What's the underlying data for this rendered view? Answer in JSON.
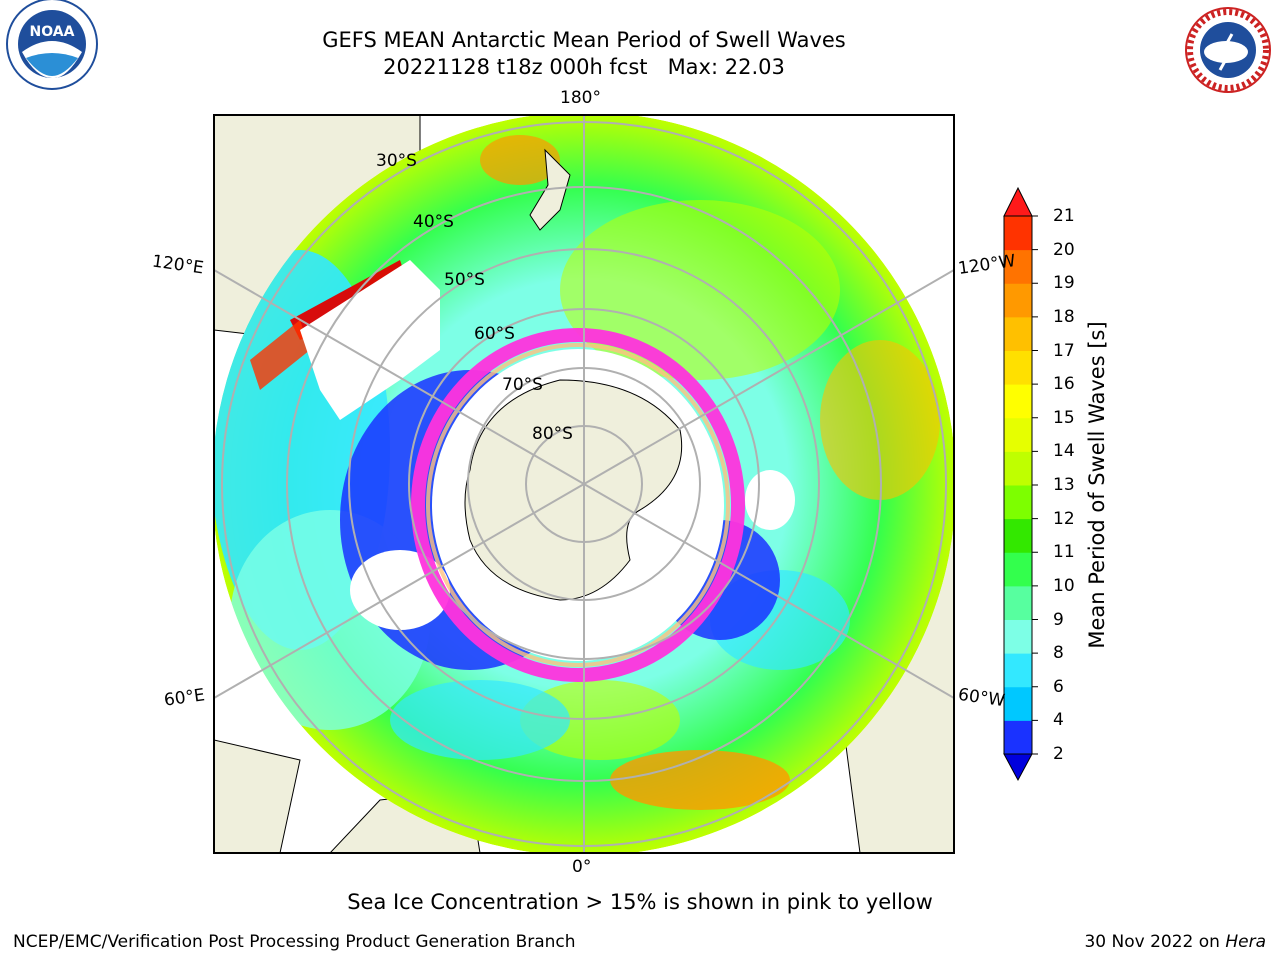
{
  "title": {
    "line1": "GEFS MEAN Antarctic Mean Period of Swell Waves",
    "line2": "20221128 t18z 000h fcst   Max: 22.03"
  },
  "logos": {
    "left": "NOAA",
    "right": "NATIONAL WEATHER SERVICE"
  },
  "map": {
    "longitude_labels": [
      "180°",
      "120°E",
      "120°W",
      "60°E",
      "60°W",
      "0°"
    ],
    "latitude_labels": [
      "30°S",
      "40°S",
      "50°S",
      "60°S",
      "70°S",
      "80°S"
    ]
  },
  "colorbar": {
    "label": "Mean Period of Swell Waves [s]",
    "ticks": [
      "2",
      "4",
      "6",
      "8",
      "9",
      "10",
      "11",
      "12",
      "13",
      "14",
      "15",
      "16",
      "17",
      "18",
      "19",
      "20",
      "21"
    ],
    "colors": [
      "#1a32ff",
      "#00c8ff",
      "#33e8ff",
      "#7dffe6",
      "#57ff9f",
      "#33ff4d",
      "#33e800",
      "#7dff00",
      "#bfff00",
      "#e6ff00",
      "#ffff00",
      "#ffe000",
      "#ffc000",
      "#ff9900",
      "#ff7300",
      "#ff3300",
      "#e00000"
    ],
    "under_color": "#0000dd",
    "over_color": "#ff1a1a"
  },
  "notes": {
    "ice": "Sea Ice Concentration > 15% is shown in pink to yellow",
    "footer_left": "NCEP/EMC/Verification Post Processing Product Generation Branch",
    "footer_date": "30 Nov 2022 on ",
    "footer_machine": "Hera"
  }
}
